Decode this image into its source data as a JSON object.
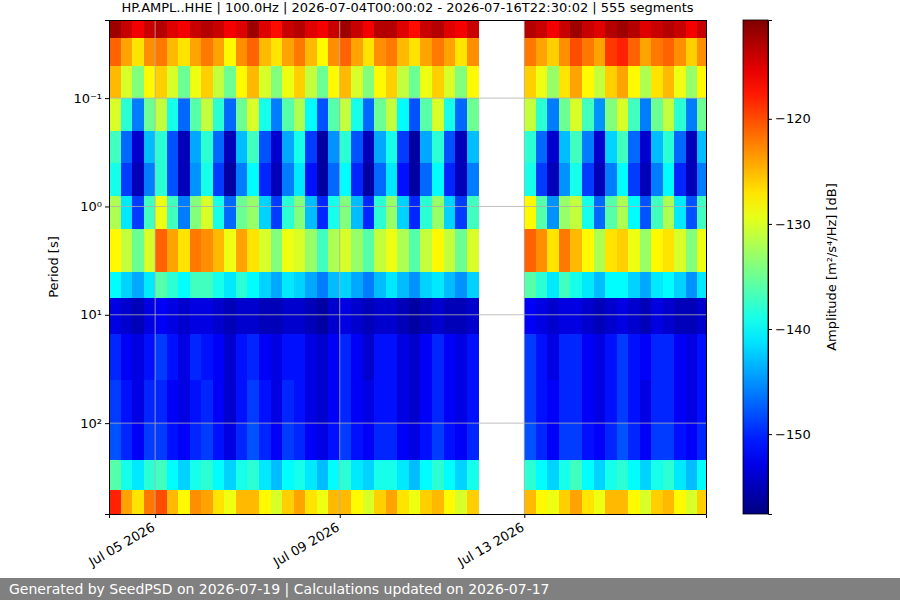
{
  "chart_data": {
    "type": "heatmap",
    "title": "HP.AMPL..HHE | 100.0Hz | 2026-07-04T00:00:02 - 2026-07-16T22:30:02 | 555 segments",
    "ylabel": "Period [s]",
    "footer": "Generated by SeedPSD on 2026-07-19 | Calculations updated on 2026-07-17",
    "log": "y",
    "grid": true,
    "xlim": [
      "2026-07-04T00:00:02",
      "2026-07-16T22:30:02"
    ],
    "xticks": [
      {
        "value": "2026-07-05T00:00:00",
        "label": "Jul 05 2026"
      },
      {
        "value": "2026-07-09T00:00:00",
        "label": "Jul 09 2026"
      },
      {
        "value": "2026-07-13T00:00:00",
        "label": "Jul 13 2026"
      }
    ],
    "ylim": [
      0.019,
      690
    ],
    "yticks": [
      {
        "value": 0.1,
        "label": "10⁻¹"
      },
      {
        "value": 1,
        "label": "10⁰"
      },
      {
        "value": 10,
        "label": "10¹"
      },
      {
        "value": 100,
        "label": "10²"
      }
    ],
    "colorbar": {
      "label": "Amplitude [m²/s⁴/Hz] [dB]",
      "range": [
        -157.6,
        -110.6
      ],
      "ticks": [
        {
          "value": -120,
          "label": "−120"
        },
        {
          "value": -130,
          "label": "−130"
        },
        {
          "value": -140,
          "label": "−140"
        },
        {
          "value": -150,
          "label": "−150"
        }
      ]
    },
    "x_edges": [
      "2026-07-04T00:00:02",
      "2026-07-04T06:00:00",
      "2026-07-04T12:00:00",
      "2026-07-04T18:00:00",
      "2026-07-05T00:00:00",
      "2026-07-05T06:00:00",
      "2026-07-05T12:00:00",
      "2026-07-05T18:00:00",
      "2026-07-06T00:00:00",
      "2026-07-06T06:00:00",
      "2026-07-06T12:00:00",
      "2026-07-06T18:00:00",
      "2026-07-07T00:00:00",
      "2026-07-07T06:00:00",
      "2026-07-07T12:00:00",
      "2026-07-07T18:00:00",
      "2026-07-08T00:00:00",
      "2026-07-08T06:00:00",
      "2026-07-08T12:00:00",
      "2026-07-08T18:00:00",
      "2026-07-09T00:00:00",
      "2026-07-09T06:00:00",
      "2026-07-09T12:00:00",
      "2026-07-09T18:00:00",
      "2026-07-10T00:00:00",
      "2026-07-10T06:00:00",
      "2026-07-10T12:00:00",
      "2026-07-10T18:00:00",
      "2026-07-11T00:00:00",
      "2026-07-11T06:00:00",
      "2026-07-11T12:00:00",
      "2026-07-11T18:00:00",
      "2026-07-12T00:00:00",
      "2026-07-12T06:00:00",
      "2026-07-12T12:00:00",
      "2026-07-12T18:00:00",
      "2026-07-13T00:00:00",
      "2026-07-13T06:00:00",
      "2026-07-13T12:00:00",
      "2026-07-13T18:00:00",
      "2026-07-14T00:00:00",
      "2026-07-14T06:00:00",
      "2026-07-14T12:00:00",
      "2026-07-14T18:00:00",
      "2026-07-15T00:00:00",
      "2026-07-15T06:00:00",
      "2026-07-15T12:00:00",
      "2026-07-15T18:00:00",
      "2026-07-16T00:00:00",
      "2026-07-16T06:00:00",
      "2026-07-16T12:00:00",
      "2026-07-16T18:00:00",
      "2026-07-16T22:30:02"
    ],
    "y_edges": [
      0.019,
      0.028,
      0.05,
      0.1,
      0.2,
      0.4,
      0.8,
      1.6,
      4,
      7,
      15,
      40,
      100,
      220,
      415,
      690
    ],
    "z": [
      [
        -112,
        -114,
        -116,
        -114,
        -113,
        -115,
        -116,
        -114,
        -113,
        -114,
        -116,
        -115,
        -112,
        -115,
        -117,
        -114,
        -113,
        -115,
        -116,
        -114,
        -112,
        -114,
        -116,
        -113,
        -113,
        -115,
        -117,
        -114,
        -113,
        -115,
        -116,
        -114,
        null,
        null,
        null,
        null,
        -113,
        -114,
        -116,
        -114,
        -112,
        -114,
        -115,
        -113,
        -112,
        -113,
        -115,
        -114,
        -113,
        -114,
        -116,
        -114
      ],
      [
        -121,
        -124,
        -127,
        -123,
        -122,
        -125,
        -127,
        -124,
        -122,
        -124,
        -128,
        -123,
        -121,
        -125,
        -127,
        -124,
        -122,
        -125,
        -128,
        -123,
        -121,
        -124,
        -127,
        -123,
        -122,
        -125,
        -127,
        -124,
        -122,
        -124,
        -127,
        -123,
        null,
        null,
        null,
        null,
        -122,
        -124,
        -126,
        -123,
        -120,
        -122,
        -124,
        -119,
        -118,
        -121,
        -124,
        -122,
        -121,
        -123,
        -126,
        -123
      ],
      [
        -125,
        -130,
        -134,
        -128,
        -126,
        -130,
        -135,
        -129,
        -126,
        -131,
        -135,
        -128,
        -125,
        -130,
        -134,
        -129,
        -126,
        -131,
        -135,
        -128,
        -125,
        -130,
        -134,
        -128,
        -126,
        -131,
        -135,
        -129,
        -126,
        -130,
        -134,
        -128,
        null,
        null,
        null,
        null,
        -126,
        -129,
        -133,
        -127,
        -124,
        -128,
        -131,
        -126,
        -124,
        -128,
        -132,
        -127,
        -125,
        -129,
        -133,
        -128
      ],
      [
        -130,
        -138,
        -146,
        -135,
        -131,
        -139,
        -147,
        -136,
        -131,
        -138,
        -147,
        -135,
        -130,
        -139,
        -146,
        -136,
        -132,
        -140,
        -148,
        -136,
        -131,
        -139,
        -147,
        -135,
        -131,
        -140,
        -148,
        -136,
        -130,
        -139,
        -147,
        -135,
        null,
        null,
        null,
        null,
        -131,
        -138,
        -146,
        -135,
        -130,
        -137,
        -145,
        -134,
        -130,
        -137,
        -146,
        -135,
        -131,
        -138,
        -146,
        -135
      ],
      [
        -137,
        -147,
        -154,
        -143,
        -138,
        -148,
        -155,
        -144,
        -138,
        -147,
        -155,
        -143,
        -137,
        -148,
        -154,
        -144,
        -139,
        -149,
        -156,
        -145,
        -138,
        -148,
        -155,
        -144,
        -139,
        -149,
        -156,
        -144,
        -138,
        -148,
        -155,
        -143,
        null,
        null,
        null,
        null,
        -138,
        -147,
        -154,
        -143,
        -137,
        -146,
        -154,
        -142,
        -137,
        -147,
        -154,
        -143,
        -138,
        -147,
        -155,
        -143
      ],
      [
        -139,
        -149,
        -155,
        -146,
        -138,
        -148,
        -155,
        -145,
        -139,
        -149,
        -156,
        -146,
        -140,
        -150,
        -155,
        -146,
        -141,
        -151,
        -156,
        -147,
        -140,
        -150,
        -156,
        -147,
        -141,
        -151,
        -156,
        -147,
        -140,
        -150,
        -155,
        -146,
        null,
        null,
        null,
        null,
        -139,
        -149,
        -155,
        -145,
        -139,
        -149,
        -155,
        -146,
        -140,
        -149,
        -155,
        -146,
        -140,
        -150,
        -155,
        -146
      ],
      [
        -132,
        -141,
        -149,
        -137,
        -129,
        -137,
        -146,
        -134,
        -130,
        -139,
        -147,
        -135,
        -133,
        -142,
        -149,
        -138,
        -134,
        -143,
        -150,
        -139,
        -134,
        -143,
        -150,
        -138,
        -133,
        -142,
        -150,
        -138,
        -133,
        -142,
        -149,
        -137,
        null,
        null,
        null,
        null,
        -128,
        -136,
        -145,
        -133,
        -131,
        -139,
        -147,
        -136,
        -132,
        -140,
        -148,
        -137,
        -132,
        -141,
        -148,
        -137
      ],
      [
        -128,
        -131,
        -135,
        -130,
        -121,
        -124,
        -127,
        -122,
        -123,
        -125,
        -129,
        -124,
        -127,
        -130,
        -134,
        -129,
        -130,
        -133,
        -137,
        -132,
        -130,
        -133,
        -136,
        -131,
        -129,
        -132,
        -136,
        -131,
        -128,
        -131,
        -135,
        -130,
        null,
        null,
        null,
        null,
        -121,
        -123,
        -127,
        -122,
        -125,
        -128,
        -132,
        -127,
        -126,
        -129,
        -133,
        -128,
        -127,
        -130,
        -134,
        -129
      ],
      [
        -140,
        -142,
        -144,
        -141,
        -136,
        -138,
        -140,
        -137,
        -137,
        -139,
        -141,
        -138,
        -140,
        -142,
        -144,
        -141,
        -142,
        -144,
        -146,
        -143,
        -142,
        -144,
        -146,
        -143,
        -141,
        -143,
        -145,
        -142,
        -141,
        -143,
        -145,
        -142,
        null,
        null,
        null,
        null,
        -136,
        -138,
        -141,
        -137,
        -139,
        -141,
        -143,
        -140,
        -140,
        -142,
        -144,
        -141,
        -140,
        -142,
        -145,
        -141
      ],
      [
        -153,
        -154,
        -155,
        -153,
        -152,
        -153,
        -154,
        -153,
        -153,
        -154,
        -155,
        -154,
        -154,
        -155,
        -155,
        -154,
        -154,
        -155,
        -156,
        -154,
        -153,
        -154,
        -155,
        -154,
        -154,
        -155,
        -156,
        -155,
        -154,
        -155,
        -155,
        -154,
        null,
        null,
        null,
        null,
        -152,
        -153,
        -154,
        -153,
        -153,
        -154,
        -155,
        -154,
        -153,
        -154,
        -155,
        -153,
        -154,
        -155,
        -155,
        -154
      ],
      [
        -150,
        -152,
        -153,
        -151,
        -149,
        -151,
        -153,
        -150,
        -151,
        -152,
        -154,
        -151,
        -150,
        -152,
        -153,
        -151,
        -151,
        -153,
        -154,
        -152,
        -150,
        -152,
        -154,
        -151,
        -151,
        -153,
        -154,
        -152,
        -150,
        -152,
        -153,
        -151,
        null,
        null,
        null,
        null,
        -149,
        -151,
        -153,
        -150,
        -150,
        -152,
        -153,
        -151,
        -149,
        -151,
        -152,
        -150,
        -150,
        -152,
        -153,
        -151
      ],
      [
        -149,
        -151,
        -153,
        -150,
        -150,
        -152,
        -153,
        -151,
        -150,
        -152,
        -154,
        -151,
        -149,
        -151,
        -153,
        -150,
        -151,
        -153,
        -154,
        -152,
        -150,
        -152,
        -153,
        -151,
        -151,
        -153,
        -154,
        -152,
        -150,
        -152,
        -153,
        -151,
        null,
        null,
        null,
        null,
        -149,
        -151,
        -152,
        -150,
        -150,
        -152,
        -153,
        -151,
        -149,
        -151,
        -153,
        -150,
        -150,
        -152,
        -153,
        -151
      ],
      [
        -148,
        -150,
        -152,
        -149,
        -149,
        -151,
        -152,
        -150,
        -149,
        -151,
        -153,
        -150,
        -148,
        -150,
        -152,
        -149,
        -150,
        -152,
        -153,
        -151,
        -149,
        -151,
        -152,
        -150,
        -150,
        -152,
        -153,
        -151,
        -149,
        -151,
        -152,
        -150,
        null,
        null,
        null,
        null,
        -148,
        -150,
        -152,
        -149,
        -149,
        -151,
        -152,
        -150,
        -148,
        -150,
        -152,
        -149,
        -149,
        -151,
        -152,
        -150
      ],
      [
        -136,
        -139,
        -141,
        -138,
        -137,
        -140,
        -142,
        -139,
        -138,
        -140,
        -142,
        -139,
        -138,
        -141,
        -143,
        -140,
        -139,
        -141,
        -143,
        -140,
        -138,
        -141,
        -142,
        -139,
        -139,
        -141,
        -143,
        -140,
        -138,
        -140,
        -142,
        -139,
        null,
        null,
        null,
        null,
        -138,
        -140,
        -142,
        -139,
        -137,
        -140,
        -142,
        -139,
        -138,
        -140,
        -142,
        -139,
        -138,
        -141,
        -143,
        -140
      ],
      [
        -118,
        -124,
        -127,
        -122,
        -120,
        -125,
        -128,
        -123,
        -124,
        -127,
        -129,
        -125,
        -125,
        -128,
        -130,
        -126,
        -124,
        -127,
        -129,
        -125,
        -125,
        -128,
        -130,
        -126,
        -124,
        -127,
        -129,
        -126,
        -125,
        -128,
        -130,
        -126,
        null,
        null,
        null,
        null,
        -125,
        -128,
        -129,
        -126,
        -124,
        -127,
        -129,
        -125,
        -125,
        -128,
        -130,
        -126,
        -125,
        -128,
        -130,
        -126
      ]
    ]
  }
}
